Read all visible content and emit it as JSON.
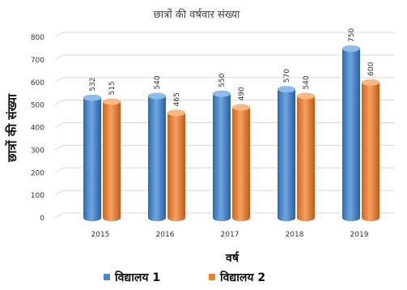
{
  "chart_data": {
    "type": "bar",
    "title": "छात्रों की वर्षवार संख्या",
    "xlabel": "वर्ष",
    "ylabel": "छात्रों की संख्या",
    "categories": [
      "2015",
      "2016",
      "2017",
      "2018",
      "2019"
    ],
    "series": [
      {
        "name": "विद्यालय 1",
        "values": [
          532,
          540,
          550,
          570,
          750
        ],
        "color": "#4a86c8"
      },
      {
        "name": "विद्यालय 2",
        "values": [
          515,
          465,
          490,
          540,
          600
        ],
        "color": "#ed7d31"
      }
    ],
    "ylim": [
      0,
      800
    ],
    "yticks": [
      0,
      100,
      200,
      300,
      400,
      500,
      600,
      700,
      800
    ],
    "grid": true,
    "legend": "bottom"
  }
}
